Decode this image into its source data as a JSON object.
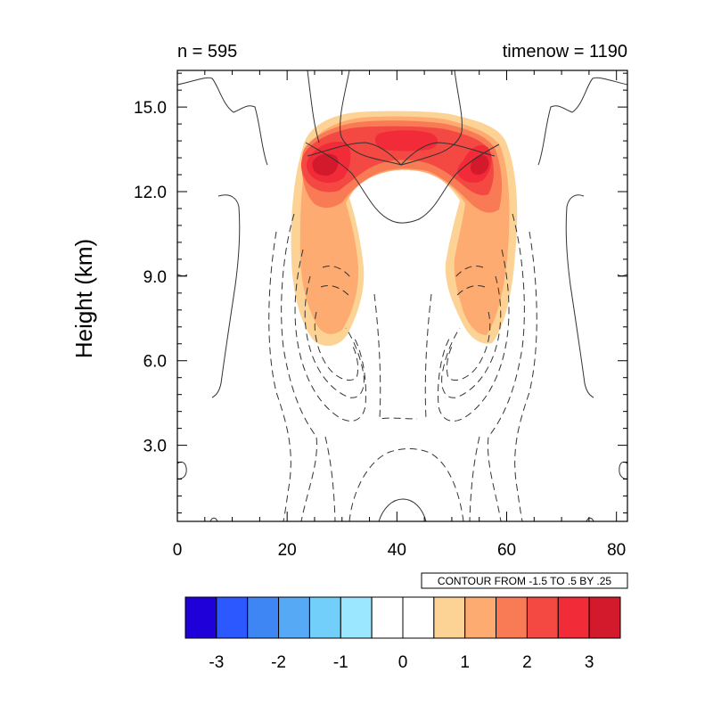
{
  "chart_data": {
    "type": "heatmap",
    "title_left": "n = 595",
    "title_right": "timenow = 1190",
    "xlabel": "",
    "ylabel": "Height (km)",
    "xlim": [
      0,
      82
    ],
    "ylim": [
      0.3,
      16.3
    ],
    "x_ticks": [
      0,
      20,
      40,
      60,
      80
    ],
    "x_tick_labels": [
      "0",
      "20",
      "40",
      "60",
      "80"
    ],
    "y_ticks": [
      3.0,
      6.0,
      9.0,
      12.0,
      15.0
    ],
    "y_tick_labels": [
      "3.0",
      "6.0",
      "9.0",
      "12.0",
      "15.0"
    ],
    "contour_info": "CONTOUR FROM -1.5 TO .5 BY .25",
    "colorbar": {
      "levels": [
        "-3",
        "-2",
        "-1",
        "0",
        "1",
        "2",
        "3"
      ],
      "colors": [
        "#2000d8",
        "#2c58ff",
        "#3f86f5",
        "#56a9f5",
        "#72cff9",
        "#9ae7ff",
        "#ffffff",
        "#ffffff",
        "#fdd295",
        "#fdab70",
        "#f97b55",
        "#f44842",
        "#f12b37",
        "#d21a2c"
      ]
    },
    "shaded_field": {
      "description_levels": [
        0.5,
        1.0,
        1.5,
        2.0,
        2.5,
        3.0
      ],
      "structure": "two symmetric anvil-shaped positive maxima near x=27 and x=55 at 12.5-13.5 km, merging across x=35-50 near 13.5-14.5 km, with arms descending to ~6.7 km at x=27-31 and x=51-55"
    }
  }
}
